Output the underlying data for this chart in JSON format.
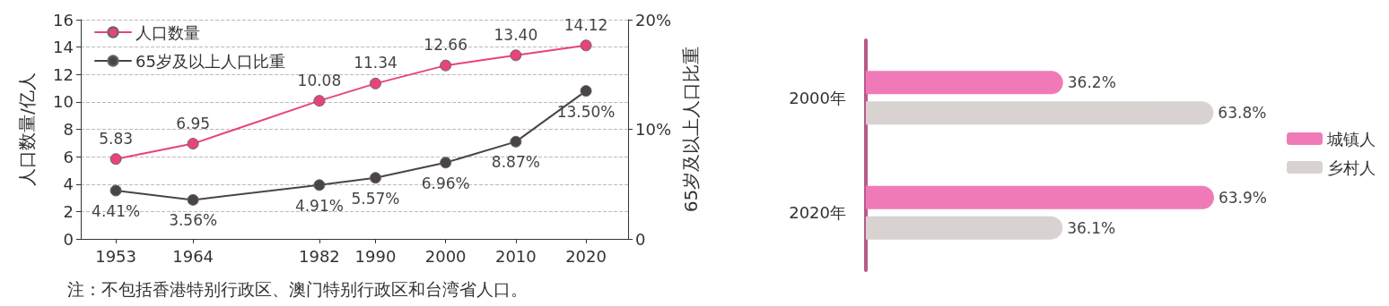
{
  "chart_data": [
    {
      "type": "line",
      "x": [
        1953,
        1964,
        1982,
        1990,
        2000,
        2010,
        2020
      ],
      "xlim": [
        1948,
        2026
      ],
      "xticks": [
        1953,
        1964,
        1982,
        1990,
        2000,
        2010,
        2020
      ],
      "ylabel": "人口数量/亿人",
      "y2label": "65岁及以上人口比重",
      "ylim": [
        0,
        16
      ],
      "yticks": [
        0,
        2,
        4,
        6,
        8,
        10,
        12,
        14,
        16
      ],
      "y2lim": [
        0,
        20
      ],
      "y2ticks": [
        0,
        {
          "value": 10,
          "label": "10%"
        },
        {
          "value": 20,
          "label": "20%"
        }
      ],
      "series": [
        {
          "name": "人口数量",
          "color": "#e8437a",
          "values": [
            5.83,
            6.95,
            10.08,
            11.34,
            12.66,
            13.4,
            14.12
          ],
          "value_labels": [
            "5.83",
            "6.95",
            "10.08",
            "11.34",
            "12.66",
            "13.40",
            "14.12"
          ]
        },
        {
          "name": "65岁及以上人口比重",
          "color": "#4a4448",
          "axis": "y2",
          "values": [
            4.41,
            3.56,
            4.91,
            5.57,
            6.96,
            8.87,
            13.5
          ],
          "value_labels": [
            "4.41%",
            "3.56%",
            "4.91%",
            "5.57%",
            "6.96%",
            "8.87%",
            "13.50%"
          ]
        }
      ],
      "marker": "circle",
      "line_style": "solid",
      "grid": "y",
      "legend": "top left",
      "annotations": [
        "注：不包括香港特别行政区、澳门特别行政区和台湾省人口。"
      ]
    },
    {
      "type": "bar",
      "orientation": "horizontal",
      "categories": [
        "2000年",
        "2020年"
      ],
      "tick_labels": "y",
      "series": [
        {
          "name": "城镇人",
          "color": "#f07ab8",
          "values": [
            36.2,
            63.9
          ],
          "value_labels": [
            "36.2%",
            "63.9%"
          ]
        },
        {
          "name": "乡村人",
          "color": "#d8d2d0",
          "values": [
            63.8,
            36.1
          ],
          "value_labels": [
            "63.8%",
            "36.1%"
          ]
        }
      ],
      "grid": false,
      "legend": "right"
    }
  ]
}
